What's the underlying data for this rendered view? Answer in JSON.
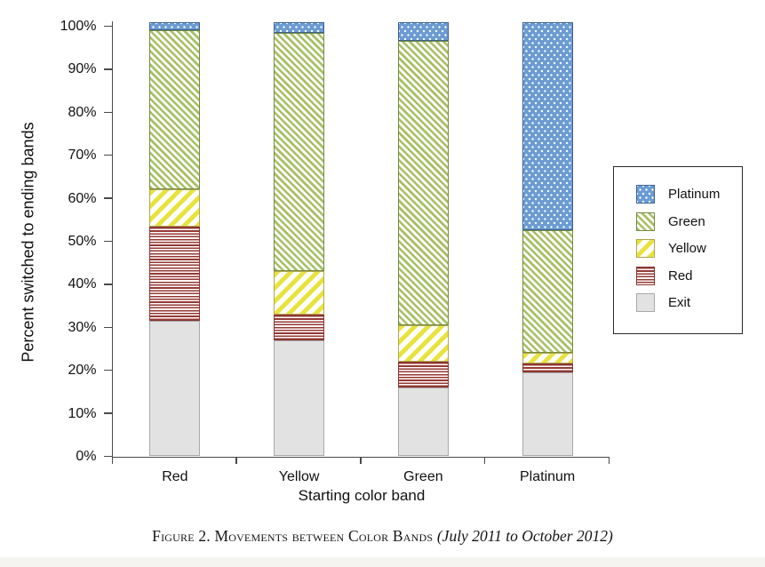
{
  "page": {
    "background": "#ffffff",
    "bottom_strip_color": "#f5f4f0"
  },
  "chart_data": {
    "type": "bar",
    "stacked": true,
    "title": "",
    "xlabel": "Starting color band",
    "ylabel": "Percent switched to ending bands",
    "categories": [
      "Red",
      "Yellow",
      "Green",
      "Platinum"
    ],
    "series": [
      {
        "name": "Exit",
        "pattern": "exit",
        "values": [
          31.5,
          27.0,
          16.0,
          19.5
        ]
      },
      {
        "name": "Red",
        "pattern": "red",
        "values": [
          22.0,
          6.0,
          6.0,
          2.0
        ]
      },
      {
        "name": "Yellow",
        "pattern": "yellow",
        "values": [
          8.5,
          10.0,
          8.5,
          2.5
        ]
      },
      {
        "name": "Green",
        "pattern": "green",
        "values": [
          37.0,
          55.5,
          66.0,
          28.5
        ]
      },
      {
        "name": "Platinum",
        "pattern": "platinum",
        "values": [
          2.0,
          2.5,
          4.5,
          48.5
        ]
      }
    ],
    "y_ticks": [
      "0%",
      "10%",
      "20%",
      "30%",
      "40%",
      "50%",
      "60%",
      "70%",
      "80%",
      "90%",
      "100%"
    ],
    "ylim": [
      0,
      104
    ],
    "grid": false,
    "legend_position": "right",
    "legend_order_top_to_bottom": [
      "Platinum",
      "Green",
      "Yellow",
      "Red",
      "Exit"
    ]
  },
  "colors": {
    "platinum_fill": "#6b9bd2",
    "platinum_border": "#3c6293",
    "green_stripe": "#a5c164",
    "green_border": "#75893f",
    "yellow_stripe": "#e8e33c",
    "yellow_border": "#b1a74e",
    "red_stripe": "#953934",
    "red_border": "#8a3430",
    "exit_fill": "#e2e2e2",
    "exit_border": "#a8a8a8",
    "axis": "#4a4a4a"
  },
  "caption": {
    "main": "Figure 2. Movements between Color Bands ",
    "italic": "(July 2011 to October 2012)"
  }
}
